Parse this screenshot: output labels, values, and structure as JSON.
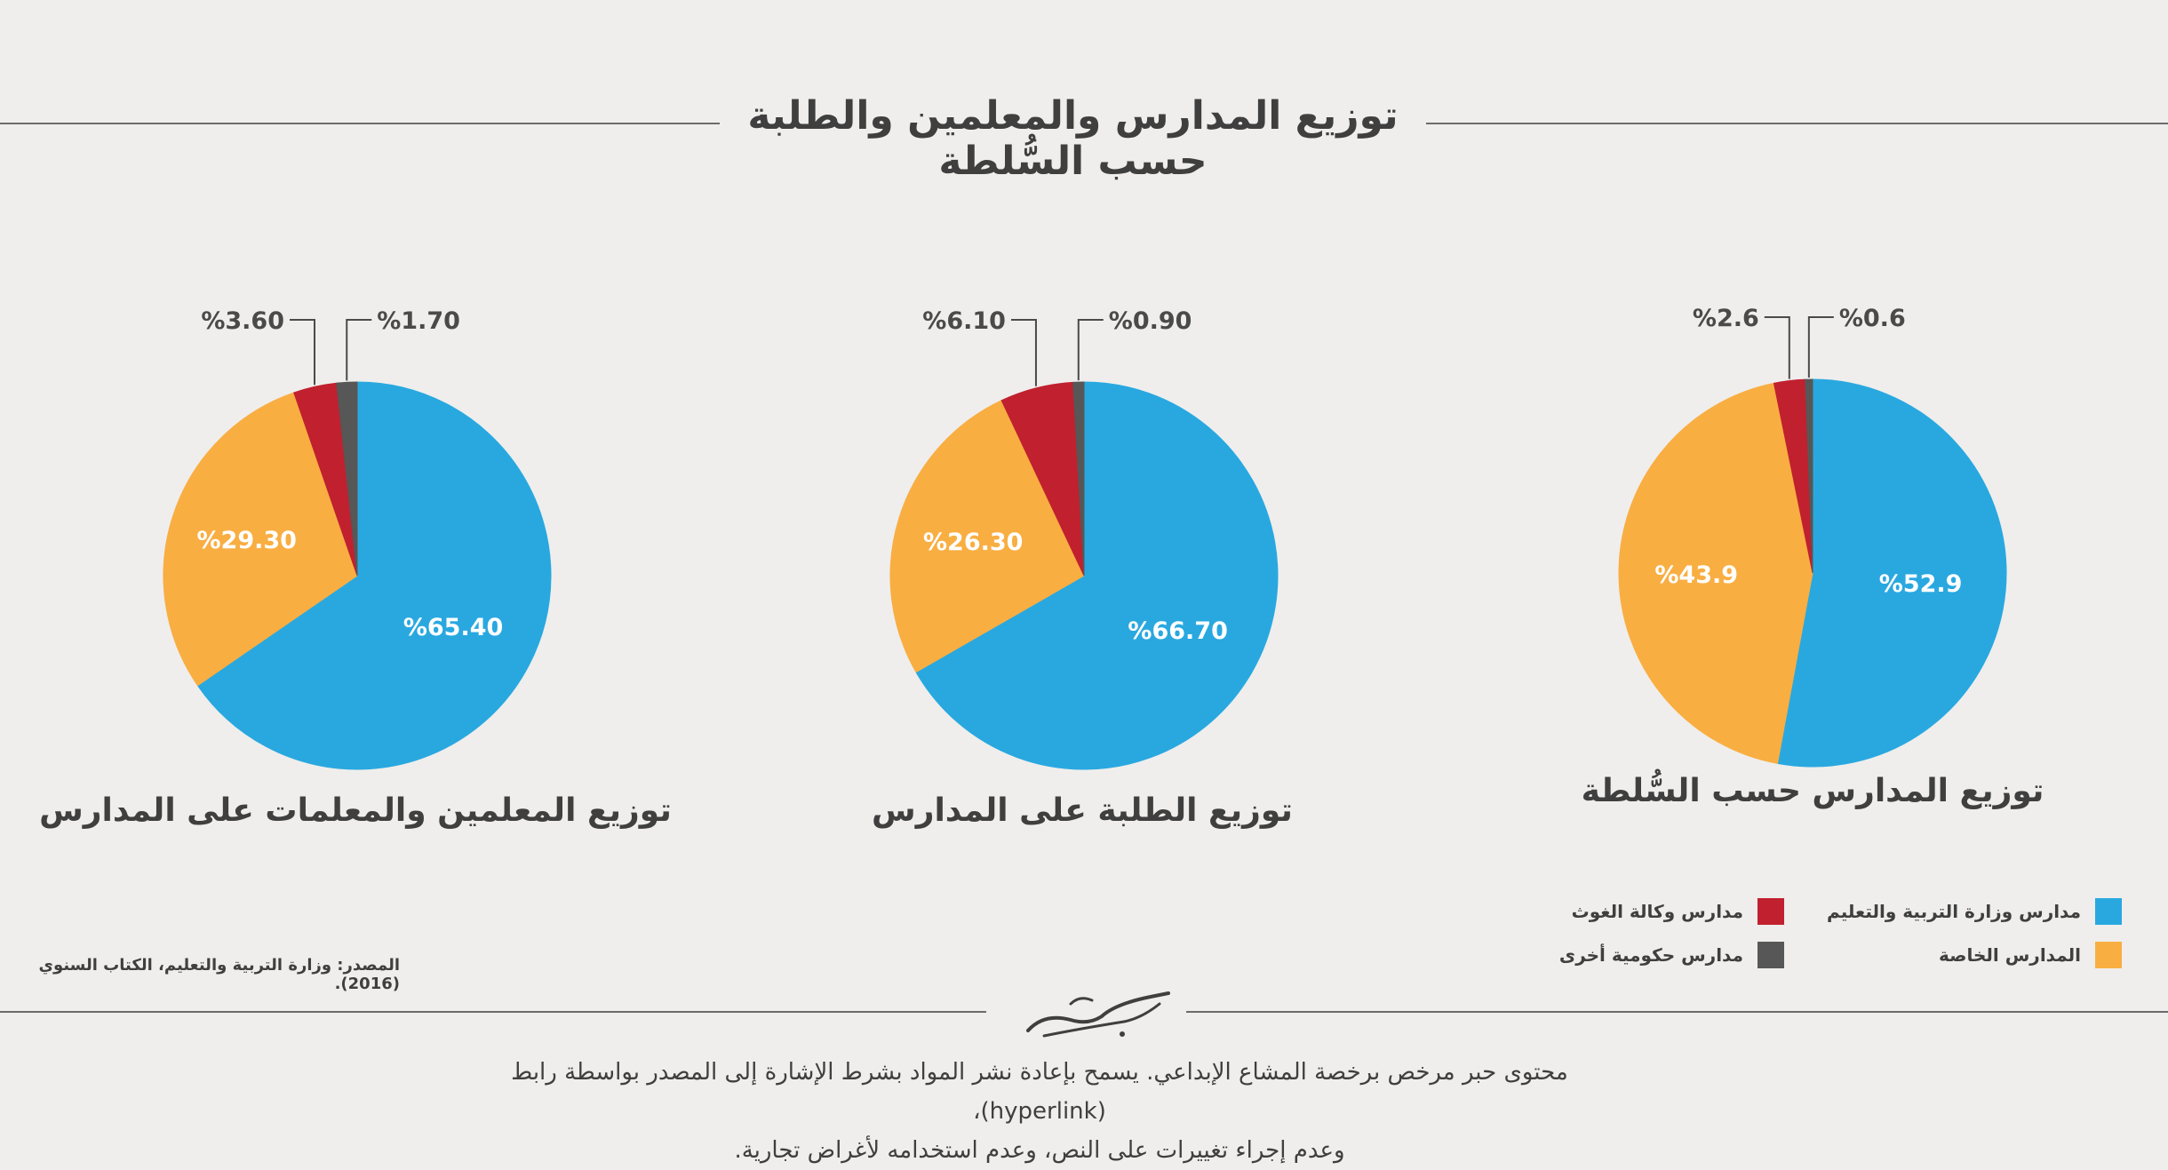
{
  "title": "توزيع المدارس والمعلمين والطلبة حسب السُّلطة",
  "colors": {
    "ministry": "#29a8e0",
    "private": "#f9ae42",
    "unrwa": "#c1202f",
    "other_gov": "#575757",
    "text": "#3f3f3f",
    "background": "#efeeec"
  },
  "legend": [
    {
      "label": "مدارس وزارة التربية والتعليم",
      "color": "#29a8e0"
    },
    {
      "label": "المدارس الخاصة",
      "color": "#f9ae42"
    },
    {
      "label": "مدارس وكالة الغوث",
      "color": "#c1202f"
    },
    {
      "label": "مدارس حكومية أخرى",
      "color": "#575757"
    }
  ],
  "chart_data": [
    {
      "type": "pie",
      "title": "توزيع المدارس حسب السُّلطة",
      "categories": [
        "مدارس وزارة التربية والتعليم",
        "المدارس الخاصة",
        "مدارس وكالة الغوث",
        "مدارس حكومية أخرى"
      ],
      "values": [
        52.9,
        43.9,
        2.6,
        0.6
      ],
      "labels": [
        "%52.9",
        "%43.9",
        "%2.6",
        "%0.6"
      ]
    },
    {
      "type": "pie",
      "title": "توزيع الطلبة على المدارس",
      "categories": [
        "مدارس وزارة التربية والتعليم",
        "المدارس الخاصة",
        "مدارس وكالة الغوث",
        "مدارس حكومية أخرى"
      ],
      "values": [
        66.7,
        26.3,
        6.1,
        0.9
      ],
      "labels": [
        "%66.70",
        "%26.30",
        "%6.10",
        "%0.90"
      ]
    },
    {
      "type": "pie",
      "title": "توزيع المعلمين والمعلمات على المدارس",
      "categories": [
        "مدارس وزارة التربية والتعليم",
        "المدارس الخاصة",
        "مدارس وكالة الغوث",
        "مدارس حكومية أخرى"
      ],
      "values": [
        65.4,
        29.3,
        3.6,
        1.7
      ],
      "labels": [
        "%65.40",
        "%29.30",
        "%3.60",
        "%1.70"
      ]
    }
  ],
  "source": "المصدر: وزارة التربية والتعليم، الكتاب السنوي (2016).",
  "license": {
    "line1": "محتوى حبر مرخص برخصة المشاع الإبداعي. يسمح بإعادة نشر المواد بشرط الإشارة إلى المصدر بواسطة رابط (hyperlink)،",
    "line2": "وعدم إجراء تغييرات على النص، وعدم استخدامه لأغراض تجارية."
  }
}
